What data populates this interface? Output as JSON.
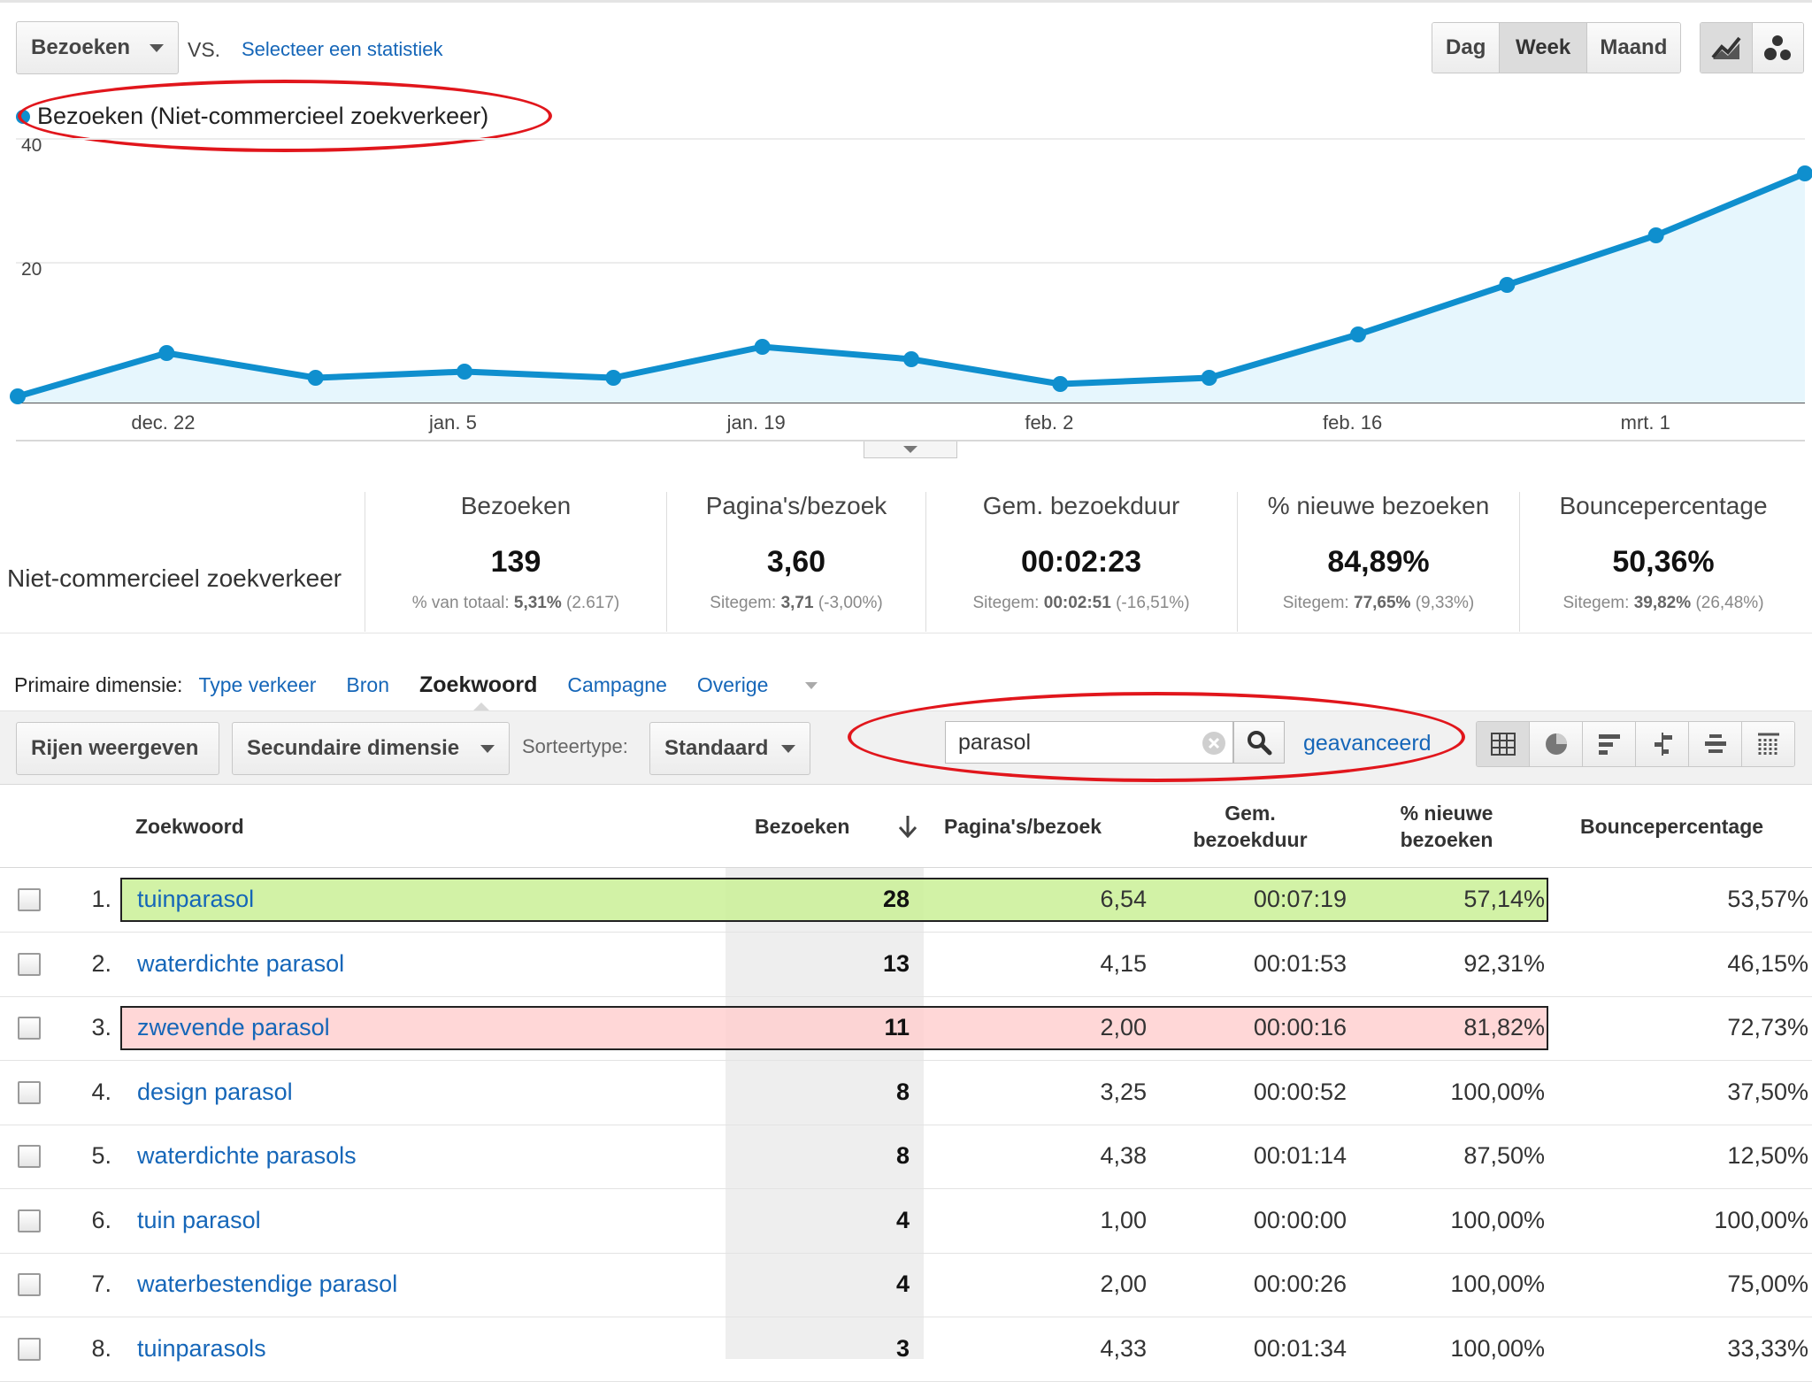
{
  "metric_select": {
    "value": "Bezoeken"
  },
  "vs_label": "VS.",
  "compare_link": "Selecteer een statistiek",
  "period_buttons": [
    "Dag",
    "Week",
    "Maand"
  ],
  "active_period": "Week",
  "chart_icons": [
    "line-chart-icon",
    "motion-chart-icon"
  ],
  "chart_data": {
    "type": "area",
    "legend": "Bezoeken (Niet-commercieel zoekverkeer)",
    "y_ticks": [
      "40",
      "20"
    ],
    "ylim": [
      0,
      40
    ],
    "x_tick_labels": [
      "dec. 22",
      "jan. 5",
      "jan. 19",
      "feb. 2",
      "feb. 16",
      "mrt. 1"
    ],
    "x": [
      "dec. 15",
      "dec. 22",
      "dec. 29",
      "jan. 5",
      "jan. 12",
      "jan. 19",
      "jan. 26",
      "feb. 2",
      "feb. 9",
      "feb. 16",
      "feb. 23",
      "mrt. 1",
      "mrt. 8"
    ],
    "series": [
      {
        "values": [
          1,
          8,
          4,
          5,
          4,
          9,
          7,
          3,
          4,
          11,
          19,
          27,
          37
        ]
      }
    ],
    "line_color": "#0f8fce",
    "fill_color": "#e6f6fd"
  },
  "summary": {
    "segment_label": "Niet-commercieel zoekverkeer",
    "metrics": [
      {
        "title": "Bezoeken",
        "value": "139",
        "sub_label": "% van totaal:",
        "sub_value": "5,31%",
        "sub_extra": "(2.617)"
      },
      {
        "title": "Pagina's/bezoek",
        "value": "3,60",
        "sub_label": "Sitegem:",
        "sub_value": "3,71",
        "sub_extra": "(-3,00%)"
      },
      {
        "title": "Gem. bezoekduur",
        "value": "00:02:23",
        "sub_label": "Sitegem:",
        "sub_value": "00:02:51",
        "sub_extra": "(-16,51%)"
      },
      {
        "title": "% nieuwe bezoeken",
        "value": "84,89%",
        "sub_label": "Sitegem:",
        "sub_value": "77,65%",
        "sub_extra": "(9,33%)"
      },
      {
        "title": "Bouncepercentage",
        "value": "50,36%",
        "sub_label": "Sitegem:",
        "sub_value": "39,82%",
        "sub_extra": "(26,48%)"
      }
    ]
  },
  "dimension": {
    "label": "Primaire dimensie:",
    "options": [
      "Type verkeer",
      "Bron",
      "Zoekwoord",
      "Campagne",
      "Overige"
    ],
    "active": "Zoekwoord"
  },
  "toolbar": {
    "rows_button": "Rijen weergeven",
    "secondary_button": "Secundaire dimensie",
    "sort_label": "Sorteertype:",
    "sort_value": "Standaard",
    "search_value": "parasol",
    "advanced_link": "geavanceerd",
    "view_icons": [
      "table-view-icon",
      "pie-view-icon",
      "performance-view-icon",
      "comparison-view-icon",
      "term-cloud-view-icon",
      "pivot-view-icon"
    ]
  },
  "table": {
    "headers": {
      "keyword": "Zoekwoord",
      "visits": "Bezoeken",
      "pages": "Pagina's/bezoek",
      "duration_1": "Gem.",
      "duration_2": "bezoekduur",
      "new_1": "% nieuwe",
      "new_2": "bezoeken",
      "bounce": "Bouncepercentage"
    },
    "rows": [
      {
        "idx": "1.",
        "keyword": "tuinparasol",
        "visits": "28",
        "pages": "6,54",
        "duration": "00:07:19",
        "new": "57,14%",
        "bounce": "53,57%",
        "highlight": "green"
      },
      {
        "idx": "2.",
        "keyword": "waterdichte parasol",
        "visits": "13",
        "pages": "4,15",
        "duration": "00:01:53",
        "new": "92,31%",
        "bounce": "46,15%",
        "highlight": ""
      },
      {
        "idx": "3.",
        "keyword": "zwevende parasol",
        "visits": "11",
        "pages": "2,00",
        "duration": "00:00:16",
        "new": "81,82%",
        "bounce": "72,73%",
        "highlight": "red"
      },
      {
        "idx": "4.",
        "keyword": "design parasol",
        "visits": "8",
        "pages": "3,25",
        "duration": "00:00:52",
        "new": "100,00%",
        "bounce": "37,50%",
        "highlight": ""
      },
      {
        "idx": "5.",
        "keyword": "waterdichte parasols",
        "visits": "8",
        "pages": "4,38",
        "duration": "00:01:14",
        "new": "87,50%",
        "bounce": "12,50%",
        "highlight": ""
      },
      {
        "idx": "6.",
        "keyword": "tuin parasol",
        "visits": "4",
        "pages": "1,00",
        "duration": "00:00:00",
        "new": "100,00%",
        "bounce": "100,00%",
        "highlight": ""
      },
      {
        "idx": "7.",
        "keyword": "waterbestendige parasol",
        "visits": "4",
        "pages": "2,00",
        "duration": "00:00:26",
        "new": "100,00%",
        "bounce": "75,00%",
        "highlight": ""
      },
      {
        "idx": "8.",
        "keyword": "tuinparasols",
        "visits": "3",
        "pages": "4,33",
        "duration": "00:01:34",
        "new": "100,00%",
        "bounce": "33,33%",
        "highlight": ""
      }
    ]
  },
  "colors": {
    "accent": "#1566b8",
    "annotation": "#e1161c",
    "chart_line": "#0f8fce"
  }
}
